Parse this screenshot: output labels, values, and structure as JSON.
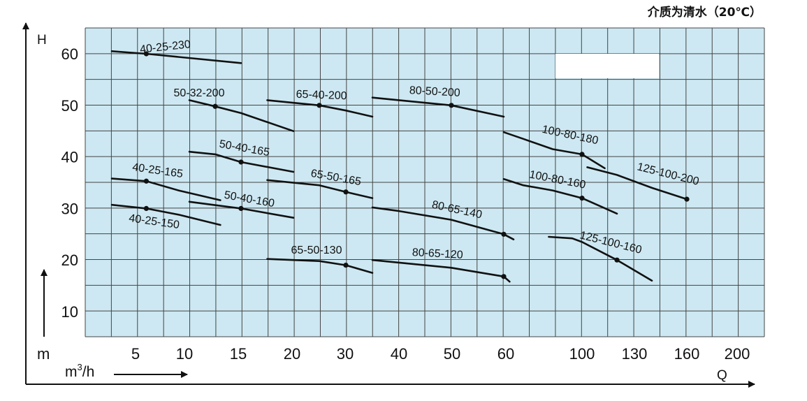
{
  "caption": "介质为清水（20℃）",
  "chart_data": {
    "type": "line",
    "title": "",
    "ylabel": "H",
    "y_unit": "m",
    "xlabel": "Q",
    "x_unit_prefix": "m",
    "x_unit_sup": "3",
    "x_unit_suffix": "/h",
    "ylim": [
      5,
      65
    ],
    "y_ticks": [
      10,
      20,
      30,
      40,
      50,
      60
    ],
    "x_ticks": [
      "5",
      "10",
      "15",
      "20",
      "30",
      "40",
      "50",
      "60",
      "100",
      "130",
      "160",
      "200"
    ],
    "grid": true,
    "grid_color": "#cde8f2",
    "series": [
      {
        "name": "40-25-230",
        "x": [
          2.5,
          6,
          15
        ],
        "y": [
          60.5,
          60,
          58.2
        ],
        "duty": [
          6,
          60
        ]
      },
      {
        "name": "50-32-200",
        "x": [
          10,
          12.5,
          15,
          20
        ],
        "y": [
          51,
          49.8,
          48.5,
          45
        ],
        "duty": [
          12.5,
          49.8
        ]
      },
      {
        "name": "65-40-200",
        "x": [
          17.5,
          25,
          30,
          35
        ],
        "y": [
          51,
          50,
          49,
          47.8
        ],
        "duty": [
          25,
          50
        ]
      },
      {
        "name": "80-50-200",
        "x": [
          35,
          40,
          50,
          60
        ],
        "y": [
          51.5,
          51,
          50,
          47.8
        ],
        "duty": [
          50,
          50
        ]
      },
      {
        "name": "100-80-180",
        "x": [
          60,
          70,
          85,
          100,
          113
        ],
        "y": [
          44.8,
          43.5,
          41.5,
          40.5,
          37.8
        ],
        "duty": [
          100,
          40.5
        ]
      },
      {
        "name": "50-40-165",
        "x": [
          10,
          12.5,
          15,
          20
        ],
        "y": [
          41,
          40.5,
          39,
          37.1
        ],
        "duty": [
          15,
          39
        ]
      },
      {
        "name": "125-100-200",
        "x": [
          103,
          120,
          140,
          160
        ],
        "y": [
          38,
          36.5,
          34,
          31.8
        ],
        "duty": [
          160,
          31.8
        ]
      },
      {
        "name": "40-25-165",
        "x": [
          2.5,
          6,
          9,
          13
        ],
        "y": [
          35.8,
          35.3,
          33.5,
          31.6
        ],
        "duty": [
          6,
          35.3
        ]
      },
      {
        "name": "65-50-165",
        "x": [
          17.5,
          25,
          30,
          35
        ],
        "y": [
          35.5,
          34.5,
          33.2,
          32
        ],
        "duty": [
          30,
          33.2
        ]
      },
      {
        "name": "100-80-160",
        "x": [
          60,
          70,
          85,
          100,
          120
        ],
        "y": [
          35.7,
          34.5,
          33.5,
          32,
          29
        ],
        "duty": [
          100,
          32
        ]
      },
      {
        "name": "50-40-160",
        "x": [
          10,
          15,
          20
        ],
        "y": [
          31.3,
          30,
          28.2
        ],
        "duty": [
          15,
          30
        ]
      },
      {
        "name": "40-25-150",
        "x": [
          2.5,
          6,
          9,
          13
        ],
        "y": [
          30.7,
          30,
          28.8,
          26.8
        ],
        "duty": [
          6,
          30
        ]
      },
      {
        "name": "80-65-140",
        "x": [
          35,
          40,
          50,
          60,
          65
        ],
        "y": [
          30.2,
          29.5,
          27.8,
          25,
          24
        ],
        "duty": [
          60,
          25
        ]
      },
      {
        "name": "125-100-160",
        "x": [
          83,
          95,
          100,
          120,
          140
        ],
        "y": [
          24.5,
          24.2,
          23.5,
          20,
          16
        ],
        "duty": [
          120,
          20
        ]
      },
      {
        "name": "65-50-130",
        "x": [
          17.5,
          25,
          30,
          35
        ],
        "y": [
          20.2,
          19.8,
          19,
          17.5
        ],
        "duty": [
          30,
          19
        ]
      },
      {
        "name": "80-65-120",
        "x": [
          35,
          40,
          50,
          60,
          63
        ],
        "y": [
          20,
          19.5,
          18.5,
          16.8,
          15.8
        ],
        "duty": [
          60,
          16.8
        ]
      }
    ]
  }
}
